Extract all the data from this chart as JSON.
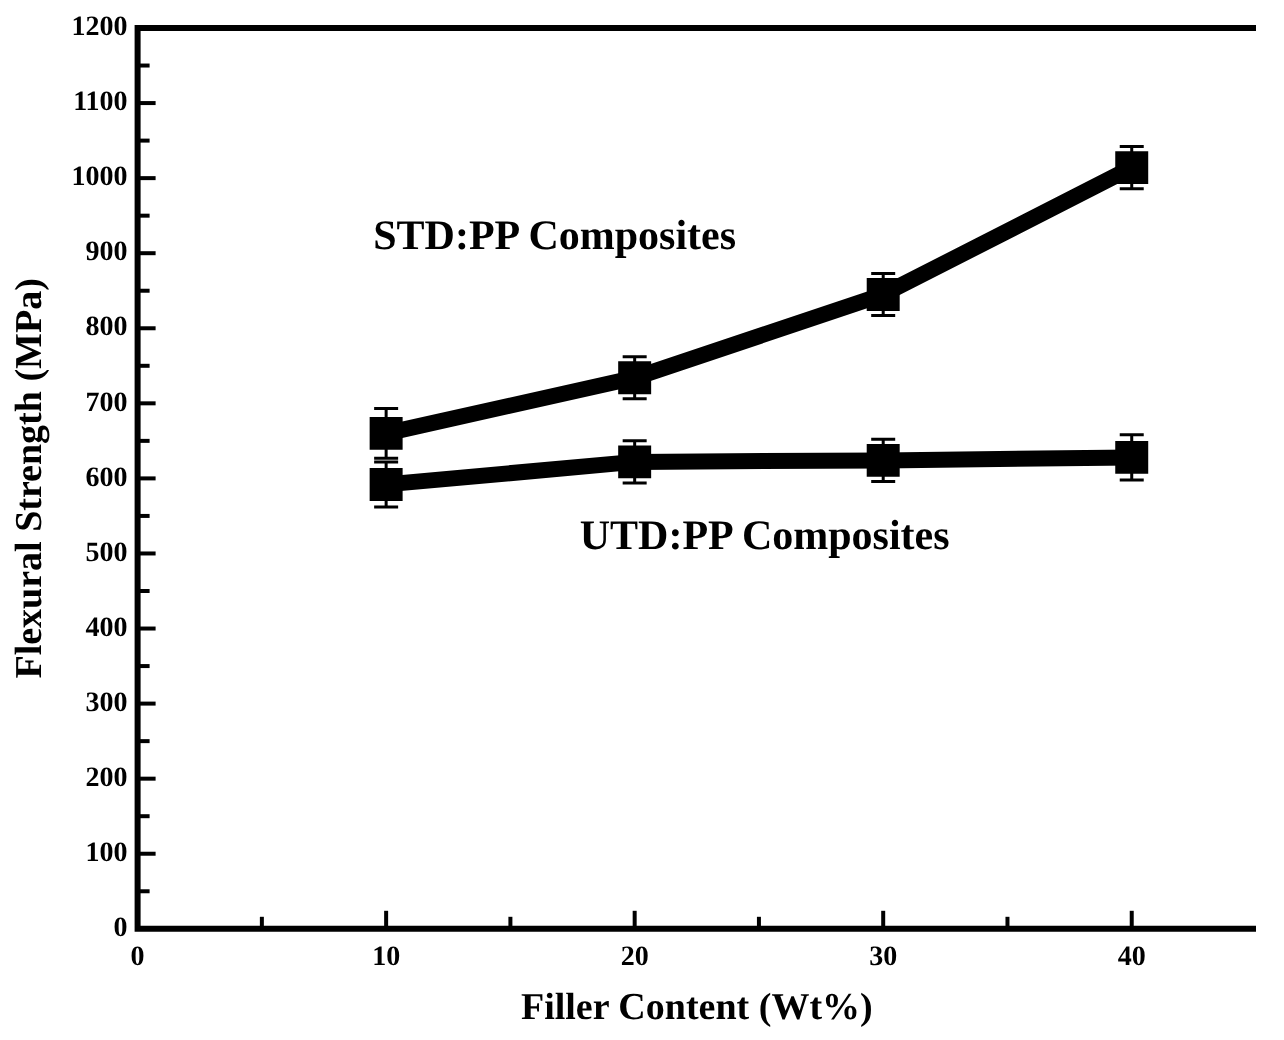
{
  "chart_data": {
    "type": "line",
    "xlabel": "Filler Content (Wt%)",
    "ylabel": "Flexural Strength (MPa)",
    "x": [
      10,
      20,
      30,
      40
    ],
    "series": [
      {
        "name": "STD:PP Composites",
        "color": "#000000",
        "values": [
          660,
          734,
          845,
          1014
        ],
        "errors": [
          33,
          28,
          28,
          28
        ]
      },
      {
        "name": "UTD:PP Composites",
        "color": "#000000",
        "values": [
          592,
          622,
          624,
          628
        ],
        "errors": [
          30,
          28,
          28,
          30
        ]
      }
    ],
    "xlim": [
      0,
      45
    ],
    "xticks": [
      0,
      {
        "value": 5,
        "label": null
      },
      10,
      {
        "value": 15,
        "label": null
      },
      20,
      {
        "value": 25,
        "label": null
      },
      30,
      {
        "value": 35,
        "label": null
      },
      40
    ],
    "ylim": [
      0,
      1200
    ],
    "yticks": [
      0,
      {
        "value": 50,
        "label": null
      },
      100,
      {
        "value": 150,
        "label": null
      },
      200,
      {
        "value": 250,
        "label": null
      },
      300,
      {
        "value": 350,
        "label": null
      },
      400,
      {
        "value": 450,
        "label": null
      },
      500,
      {
        "value": 550,
        "label": null
      },
      600,
      {
        "value": 650,
        "label": null
      },
      700,
      {
        "value": 750,
        "label": null
      },
      800,
      {
        "value": 850,
        "label": null
      },
      900,
      {
        "value": 950,
        "label": null
      },
      1000,
      {
        "value": 1050,
        "label": null
      },
      1100,
      {
        "value": 1150,
        "label": null
      },
      1200
    ],
    "marker": "square",
    "line_style": "solid"
  }
}
